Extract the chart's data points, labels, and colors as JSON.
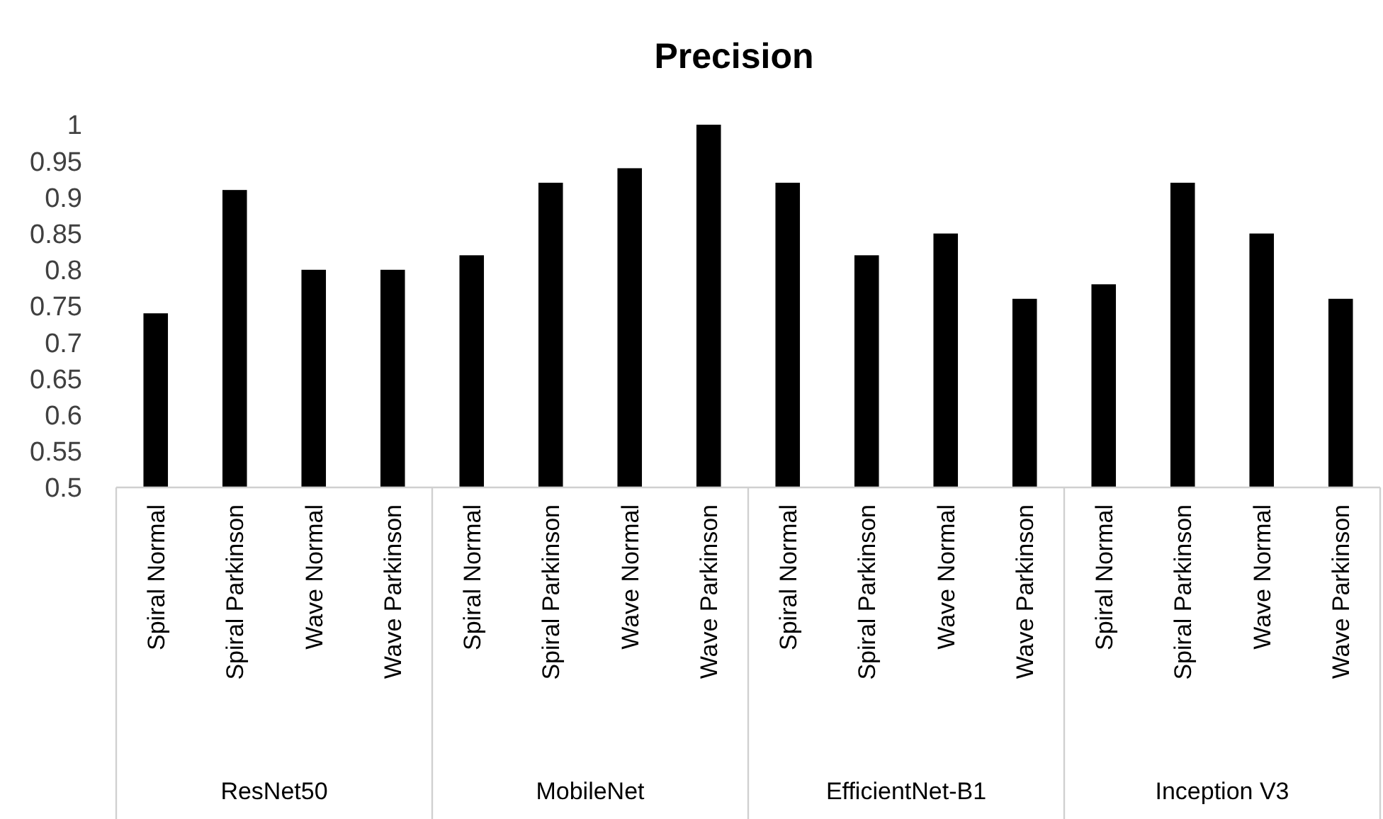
{
  "chart_data": {
    "type": "bar",
    "title": "Precision",
    "categories": [
      "Spiral Normal",
      "Spiral Parkinson",
      "Wave Normal",
      "Wave Parkinson",
      "Spiral Normal",
      "Spiral Parkinson",
      "Wave Normal",
      "Wave Parkinson",
      "Spiral Normal",
      "Spiral Parkinson",
      "Wave Normal",
      "Wave Parkinson",
      "Spiral Normal",
      "Spiral Parkinson",
      "Wave Normal",
      "Wave Parkinson"
    ],
    "values": [
      0.74,
      0.91,
      0.8,
      0.8,
      0.82,
      0.92,
      0.94,
      1.0,
      0.92,
      0.82,
      0.85,
      0.76,
      0.78,
      0.92,
      0.85,
      0.76
    ],
    "color": "#000000",
    "ylim": [
      0.5,
      1
    ],
    "yticks": [
      {
        "value": 0.5,
        "label": "0.5"
      },
      {
        "value": 0.55,
        "label": "0.55"
      },
      {
        "value": 0.6,
        "label": "0.6"
      },
      {
        "value": 0.65,
        "label": "0.65"
      },
      {
        "value": 0.7,
        "label": "0.7"
      },
      {
        "value": 0.75,
        "label": "0.75"
      },
      {
        "value": 0.8,
        "label": "0.8"
      },
      {
        "value": 0.85,
        "label": "0.85"
      },
      {
        "value": 0.9,
        "label": "0.9"
      },
      {
        "value": 0.95,
        "label": "0.95"
      },
      {
        "value": 1,
        "label": "1"
      }
    ],
    "annotations": [
      "ResNet50",
      "MobileNet",
      "EfficientNet-B1",
      "Inception V3"
    ],
    "grid": false
  }
}
